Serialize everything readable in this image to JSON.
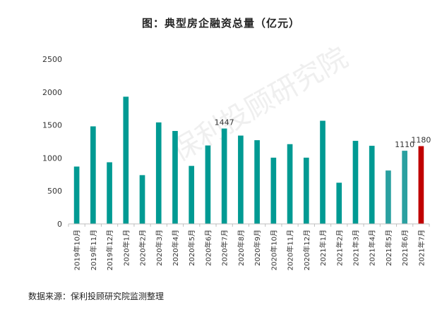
{
  "chart_data": {
    "type": "bar",
    "title": "图：典型房企融资总量（亿元）",
    "categories": [
      "2019年10月",
      "2019年11月",
      "2019年12月",
      "2020年1月",
      "2020年2月",
      "2020年3月",
      "2020年4月",
      "2020年5月",
      "2020年6月",
      "2020年7月",
      "2020年8月",
      "2020年9月",
      "2020年10月",
      "2020年11月",
      "2020年12月",
      "2021年1月",
      "2021年2月",
      "2021年3月",
      "2021年4月",
      "2021年5月",
      "2021年6月",
      "2021年7月"
    ],
    "values": [
      870,
      1480,
      935,
      1930,
      740,
      1540,
      1410,
      880,
      1190,
      1447,
      1340,
      1270,
      1005,
      1210,
      1005,
      1565,
      625,
      1260,
      1185,
      810,
      1110,
      1180
    ],
    "ylim": [
      0,
      2500
    ],
    "yticks": [
      0,
      500,
      1000,
      1500,
      2000,
      2500
    ],
    "data_labels": {
      "9": "1447",
      "20": "1110",
      "21": "1180"
    },
    "colors": {
      "default": "#009a93",
      "highlight": "#c00000",
      "faded": "#2aa0a0"
    },
    "highlight_index": 21,
    "grid": false
  },
  "source": "数据来源：保利投顾研究院监测整理",
  "watermark": "保利投顾研究院"
}
